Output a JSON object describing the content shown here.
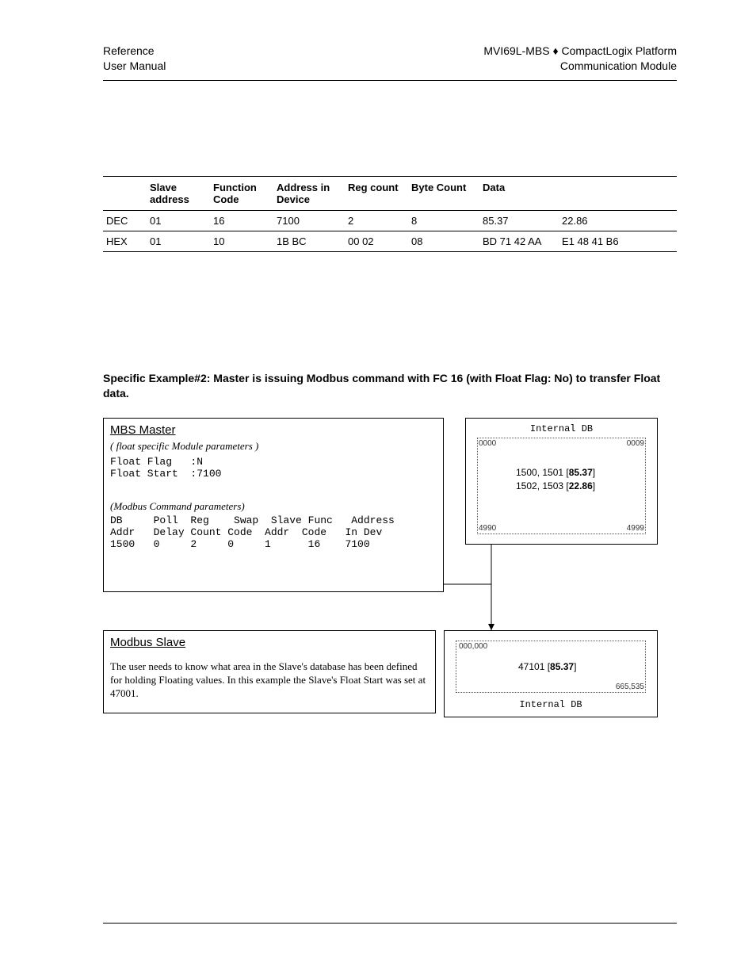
{
  "header": {
    "left_line1": "Reference",
    "left_line2": "User Manual",
    "right_line1": "MVI69L-MBS ♦ CompactLogix Platform",
    "right_line2": "Communication Module"
  },
  "table": {
    "columns": [
      "",
      "Slave address",
      "Function Code",
      "Address in Device",
      "Reg count",
      "Byte Count",
      "Data",
      ""
    ],
    "rows": [
      [
        "DEC",
        "01",
        "16",
        "7100",
        "2",
        "8",
        "85.37",
        "22.86"
      ],
      [
        "HEX",
        "01",
        "10",
        "1B BC",
        "00 02",
        "08",
        "BD 71 42 AA",
        "E1 48  41 B6"
      ]
    ],
    "col_widths": [
      "55px",
      "80px",
      "80px",
      "90px",
      "80px",
      "90px",
      "100px",
      "auto"
    ]
  },
  "example_heading": "Specific Example#2: Master is issuing Modbus command with FC 16 (with Float Flag: No) to transfer Float data.",
  "master": {
    "title": "MBS Master",
    "sub1": "( float specific Module parameters )",
    "line1": "Float Flag   :N",
    "line2": "Float Start  :7100",
    "sub2": "(Modbus Command parameters)",
    "hdr": "DB     Poll  Reg    Swap  Slave Func   Address",
    "hdr2": "Addr   Delay Count Code  Addr  Code   In Dev",
    "row": "1500   0     2     0     1      16    7100"
  },
  "db_top": {
    "title": "Internal DB",
    "tl": "0000",
    "tr": "0009",
    "v1": "1500, 1501 [85.37]",
    "v2": "1502, 1503 [22.86]",
    "bl": "4990",
    "br": "4999"
  },
  "slave": {
    "title": "Modbus Slave",
    "body": "The user needs to know what area in the Slave's database has been defined for holding Floating values. In this example the Slave's Float Start was set at 47001."
  },
  "db_bot": {
    "tl": "000,000",
    "v1": "47101 [85.37]",
    "br": "665,535",
    "title": "Internal DB"
  }
}
